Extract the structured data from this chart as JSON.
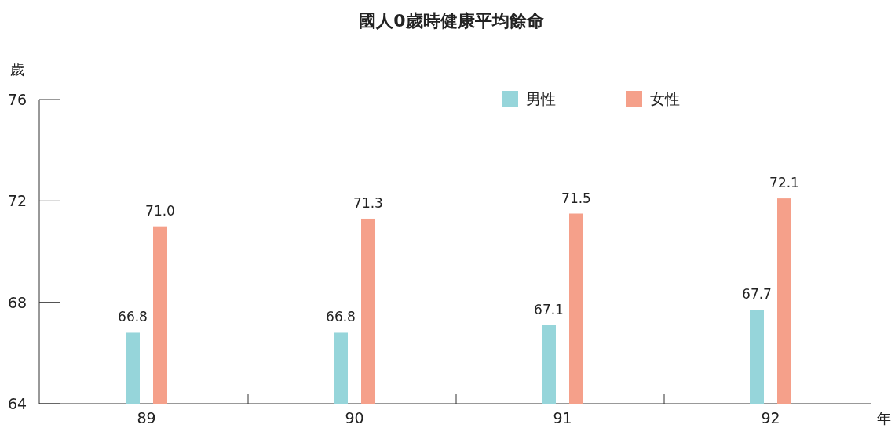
{
  "chart_data": {
    "type": "bar",
    "title": "國人0歲時健康平均餘命",
    "ylabel": "歲",
    "xlabel": "年",
    "categories": [
      "89",
      "90",
      "91",
      "92"
    ],
    "series": [
      {
        "name": "男性",
        "color": "#96d5da",
        "values": [
          66.8,
          66.8,
          67.1,
          67.7
        ],
        "value_labels": [
          "66.8",
          "66.8",
          "67.1",
          "67.7"
        ]
      },
      {
        "name": "女性",
        "color": "#f5a08a",
        "values": [
          71.0,
          71.3,
          71.5,
          72.1
        ],
        "value_labels": [
          "71.0",
          "71.3",
          "71.5",
          "72.1"
        ]
      }
    ],
    "ylim": [
      64,
      76
    ],
    "yticks": [
      64,
      68,
      72,
      76
    ],
    "legend": "top right"
  }
}
